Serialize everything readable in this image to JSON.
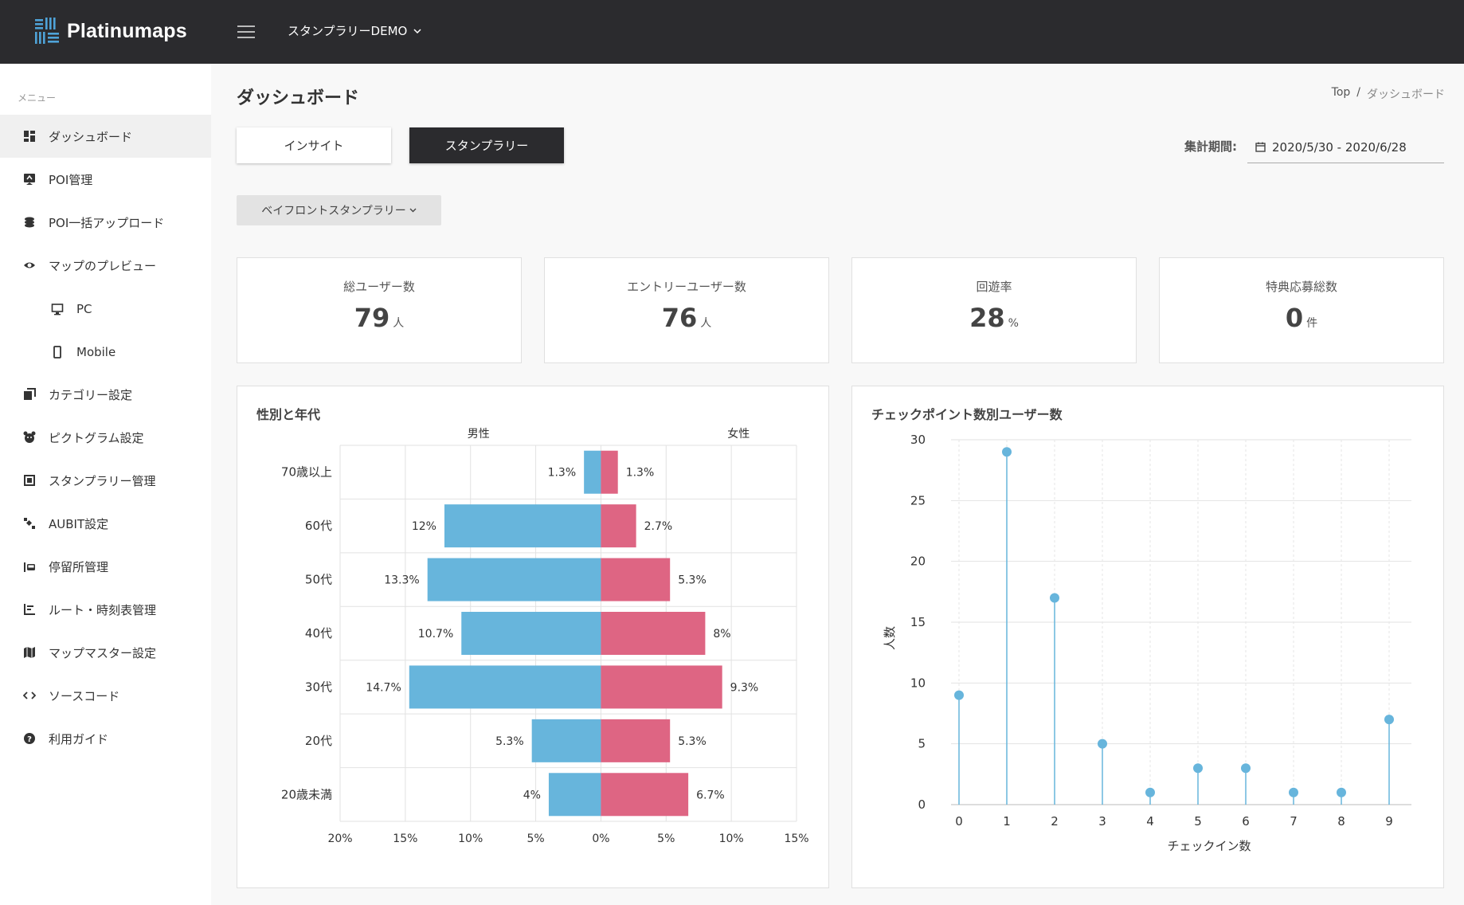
{
  "app": {
    "name": "Platinumaps",
    "project": "スタンプラリーDEMO"
  },
  "sidebar": {
    "caption": "メニュー",
    "items": [
      {
        "label": "ダッシュボード",
        "icon": "dashboard-icon"
      },
      {
        "label": "POI管理",
        "icon": "poi-icon"
      },
      {
        "label": "POI一括アップロード",
        "icon": "upload-icon"
      },
      {
        "label": "マップのプレビュー",
        "icon": "eye-icon"
      },
      {
        "label": "PC",
        "icon": "monitor-icon"
      },
      {
        "label": "Mobile",
        "icon": "mobile-icon"
      },
      {
        "label": "カテゴリー設定",
        "icon": "category-icon"
      },
      {
        "label": "ピクトグラム設定",
        "icon": "pictogram-icon"
      },
      {
        "label": "スタンプラリー管理",
        "icon": "stamp-icon"
      },
      {
        "label": "AUBIT設定",
        "icon": "satellite-icon"
      },
      {
        "label": "停留所管理",
        "icon": "bus-stop-icon"
      },
      {
        "label": "ルート・時刻表管理",
        "icon": "timeline-icon"
      },
      {
        "label": "マップマスター設定",
        "icon": "map-icon"
      },
      {
        "label": "ソースコード",
        "icon": "code-icon"
      },
      {
        "label": "利用ガイド",
        "icon": "help-icon"
      }
    ]
  },
  "page": {
    "title": "ダッシュボード",
    "breadcrumb": {
      "home": "Top",
      "sep": "/",
      "current": "ダッシュボード"
    },
    "tabs": {
      "insight": "インサイト",
      "stamp": "スタンプラリー"
    },
    "period": {
      "label": "集計期間:",
      "value": "2020/5/30 - 2020/6/28"
    },
    "rally_select": "ベイフロントスタンプラリー"
  },
  "stats": [
    {
      "label": "総ユーザー数",
      "value": "79",
      "unit": "人"
    },
    {
      "label": "エントリーユーザー数",
      "value": "76",
      "unit": "人"
    },
    {
      "label": "回遊率",
      "value": "28",
      "unit": "%"
    },
    {
      "label": "特典応募総数",
      "value": "0",
      "unit": "件"
    }
  ],
  "colors": {
    "male": "#67b5dc",
    "female": "#de6583",
    "dark": "#2b2b2e"
  },
  "chart_data": [
    {
      "type": "bar",
      "title": "性別と年代",
      "orientation": "horizontal-diverging",
      "categories": [
        "70歳以上",
        "60代",
        "50代",
        "40代",
        "30代",
        "20代",
        "20歳未満"
      ],
      "series": [
        {
          "name": "男性",
          "values": [
            1.3,
            12,
            13.3,
            10.7,
            14.7,
            5.3,
            4
          ],
          "labels": [
            "1.3%",
            "12%",
            "13.3%",
            "10.7%",
            "14.7%",
            "5.3%",
            "4%"
          ]
        },
        {
          "name": "女性",
          "values": [
            1.3,
            2.7,
            5.3,
            8,
            9.3,
            5.3,
            6.7
          ],
          "labels": [
            "1.3%",
            "2.7%",
            "5.3%",
            "8%",
            "9.3%",
            "5.3%",
            "6.7%"
          ]
        }
      ],
      "xticks": [
        "20%",
        "15%",
        "10%",
        "5%",
        "0%",
        "5%",
        "10%",
        "15%"
      ],
      "xlim": [
        -20,
        15
      ]
    },
    {
      "type": "scatter",
      "style": "lollipop",
      "title": "チェックポイント数別ユーザー数",
      "x": [
        0,
        1,
        2,
        3,
        4,
        5,
        6,
        7,
        8,
        9
      ],
      "values": [
        9,
        29,
        17,
        5,
        1,
        3,
        3,
        1,
        1,
        7
      ],
      "xlabel": "チェックイン数",
      "ylabel": "人数",
      "ylim": [
        0,
        30
      ],
      "yticks": [
        0,
        5,
        10,
        15,
        20,
        25,
        30
      ]
    }
  ]
}
